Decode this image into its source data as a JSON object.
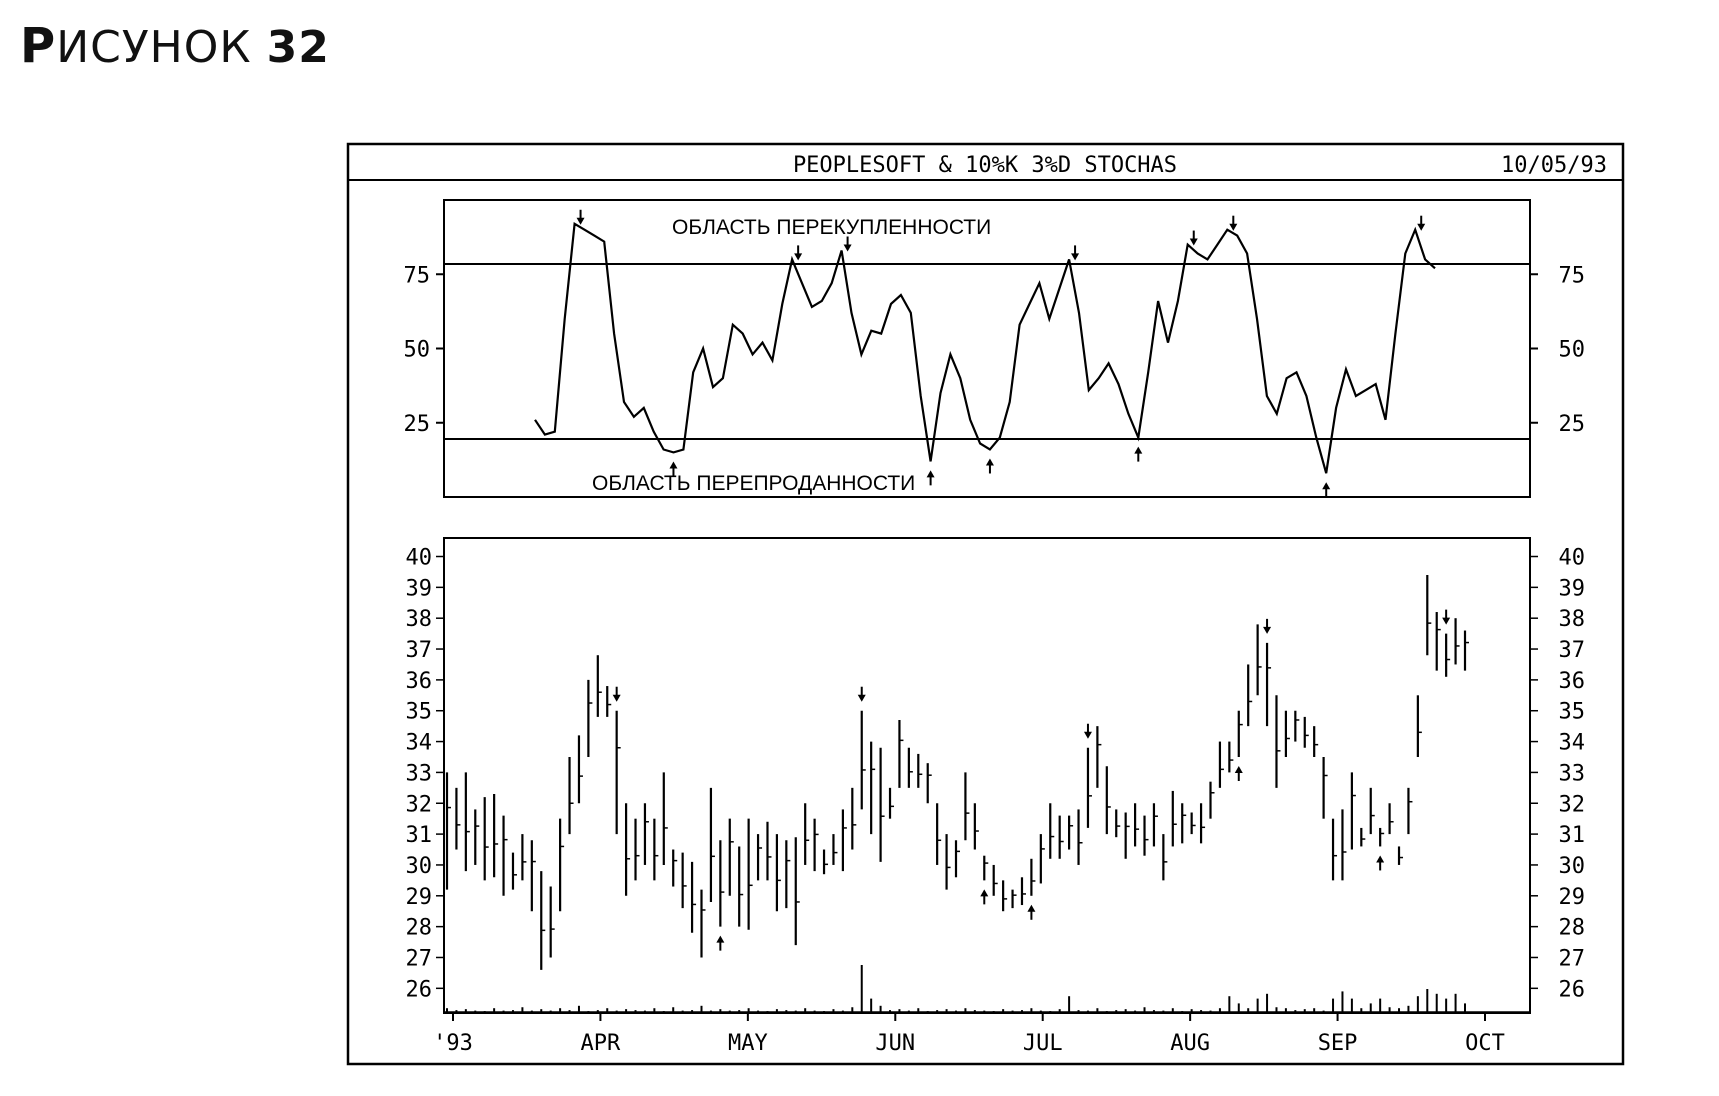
{
  "figure": {
    "title_first": "Р",
    "title_rest": "ИСУНОК",
    "title_number": "32"
  },
  "chart_data": [
    {
      "type": "line",
      "header_title": "PEOPLESOFT & 10%K 3%D STOCHAS",
      "header_date": "10/05/93",
      "overbought_label": "ОБЛАСТЬ ПЕРЕКУПЛЕННОСТИ",
      "oversold_label": "ОБЛАСТЬ ПЕРЕПРОДАННОСТИ",
      "y_ticks": [
        25,
        50,
        75
      ],
      "ylim": [
        0,
        100
      ],
      "overbought_level": 80,
      "oversold_level": 20,
      "grid": false,
      "values": [
        26,
        21,
        22,
        60,
        92,
        90,
        88,
        86,
        55,
        32,
        27,
        30,
        22,
        16,
        15,
        16,
        42,
        50,
        37,
        40,
        58,
        55,
        48,
        52,
        46,
        65,
        80,
        72,
        64,
        66,
        72,
        83,
        62,
        48,
        56,
        55,
        65,
        68,
        62,
        34,
        12,
        35,
        48,
        40,
        26,
        18,
        16,
        20,
        32,
        58,
        65,
        72,
        60,
        70,
        80,
        62,
        36,
        40,
        45,
        38,
        28,
        20,
        42,
        66,
        52,
        66,
        85,
        82,
        80,
        85,
        90,
        88,
        82,
        60,
        34,
        28,
        40,
        42,
        34,
        20,
        8,
        30,
        43,
        34,
        36,
        38,
        26,
        55,
        82,
        90,
        80,
        77
      ]
    },
    {
      "type": "bar",
      "subtype": "ohlc",
      "y_ticks": [
        26,
        27,
        28,
        29,
        30,
        31,
        32,
        33,
        34,
        35,
        36,
        37,
        38,
        39,
        40
      ],
      "ylim": [
        25.2,
        40.6
      ],
      "x_labels": [
        "'93",
        "APR",
        "MAY",
        "JUN",
        "JUL",
        "AUG",
        "SEP",
        "OCT"
      ],
      "grid": false,
      "ranges": [
        [
          29.2,
          33
        ],
        [
          30.5,
          32.5
        ],
        [
          29.8,
          33
        ],
        [
          30,
          31.8
        ],
        [
          29.5,
          32.2
        ],
        [
          29.6,
          32.3
        ],
        [
          29,
          31.6
        ],
        [
          29.2,
          30.4
        ],
        [
          29.5,
          31
        ],
        [
          28.5,
          30.8
        ],
        [
          26.6,
          29.8
        ],
        [
          27,
          29.3
        ],
        [
          28.5,
          31.5
        ],
        [
          31,
          33.5
        ],
        [
          32,
          34.2
        ],
        [
          33.5,
          36
        ],
        [
          34.8,
          36.8
        ],
        [
          34.8,
          35.8
        ],
        [
          31,
          35
        ],
        [
          29,
          32
        ],
        [
          29.5,
          31.5
        ],
        [
          30,
          32
        ],
        [
          29.5,
          31.5
        ],
        [
          30,
          33
        ],
        [
          29.3,
          30.5
        ],
        [
          28.6,
          30.4
        ],
        [
          27.8,
          30.1
        ],
        [
          27,
          29.2
        ],
        [
          28.8,
          32.5
        ],
        [
          28,
          30.8
        ],
        [
          29,
          31.5
        ],
        [
          28,
          30.6
        ],
        [
          27.9,
          31.5
        ],
        [
          29.5,
          31
        ],
        [
          29.5,
          31.4
        ],
        [
          28.5,
          31
        ],
        [
          28.6,
          30.8
        ],
        [
          27.4,
          30.9
        ],
        [
          30,
          32
        ],
        [
          29.8,
          31.5
        ],
        [
          29.7,
          30.5
        ],
        [
          30,
          31
        ],
        [
          29.8,
          31.8
        ],
        [
          30.5,
          32.5
        ],
        [
          31.8,
          35
        ],
        [
          31,
          34
        ],
        [
          30.1,
          33.8
        ],
        [
          31.5,
          32.5
        ],
        [
          32.5,
          34.7
        ],
        [
          32.5,
          33.8
        ],
        [
          32.5,
          33.6
        ],
        [
          32,
          33.3
        ],
        [
          30,
          32
        ],
        [
          29.2,
          31
        ],
        [
          29.6,
          30.8
        ],
        [
          30.8,
          33
        ],
        [
          30.5,
          32
        ],
        [
          29.5,
          30.3
        ],
        [
          29,
          30
        ],
        [
          28.5,
          29.5
        ],
        [
          28.6,
          29.2
        ],
        [
          28.7,
          29.6
        ],
        [
          29,
          30.2
        ],
        [
          29.4,
          31
        ],
        [
          30.2,
          32
        ],
        [
          30.2,
          31.6
        ],
        [
          30.5,
          31.6
        ],
        [
          30,
          31.8
        ],
        [
          31.2,
          33.8
        ],
        [
          32.5,
          34.5
        ],
        [
          31,
          33.2
        ],
        [
          30.9,
          31.8
        ],
        [
          30.2,
          31.7
        ],
        [
          30.6,
          32
        ],
        [
          30.3,
          31.6
        ],
        [
          30.6,
          32
        ],
        [
          29.5,
          31
        ],
        [
          30.6,
          32.4
        ],
        [
          30.7,
          32
        ],
        [
          31,
          31.7
        ],
        [
          30.7,
          32
        ],
        [
          31.5,
          32.7
        ],
        [
          32.5,
          34
        ],
        [
          33,
          34
        ],
        [
          33.5,
          35
        ],
        [
          34.5,
          36.5
        ],
        [
          35.5,
          37.8
        ],
        [
          34.5,
          37.2
        ],
        [
          32.5,
          35.5
        ],
        [
          33.5,
          35
        ],
        [
          34,
          35
        ],
        [
          33.8,
          34.8
        ],
        [
          33.5,
          34.5
        ],
        [
          31.5,
          33.5
        ],
        [
          29.5,
          31.5
        ],
        [
          29.5,
          31.8
        ],
        [
          30.5,
          33
        ],
        [
          30.6,
          31.2
        ],
        [
          31,
          32.5
        ],
        [
          30.6,
          31.2
        ],
        [
          31,
          32
        ],
        [
          30,
          30.6
        ],
        [
          31,
          32.5
        ],
        [
          33.5,
          35.5
        ],
        [
          36.8,
          39.4
        ],
        [
          36.3,
          38.2
        ],
        [
          36.1,
          37.5
        ],
        [
          36.5,
          38
        ],
        [
          36.3,
          37.6
        ]
      ],
      "volume": [
        0.1,
        0.06,
        0.08,
        0.05,
        0.04,
        0.1,
        0.05,
        0.06,
        0.12,
        0.05,
        0.08,
        0.05,
        0.1,
        0.06,
        0.15,
        0.04,
        0.06,
        0.1,
        0.05,
        0.08,
        0.06,
        0.05,
        0.1,
        0.04,
        0.12,
        0.05,
        0.06,
        0.15,
        0.05,
        0.08,
        0.05,
        0.06,
        0.1,
        0.05,
        0.04,
        0.08,
        0.06,
        0.05,
        0.1,
        0.05,
        0.04,
        0.08,
        0.05,
        0.12,
        1.0,
        0.3,
        0.15,
        0.06,
        0.08,
        0.05,
        0.1,
        0.04,
        0.06,
        0.08,
        0.05,
        0.1,
        0.06,
        0.05,
        0.04,
        0.08,
        0.05,
        0.06,
        0.1,
        0.05,
        0.04,
        0.08,
        0.35,
        0.06,
        0.05,
        0.1,
        0.04,
        0.06,
        0.08,
        0.05,
        0.12,
        0.06,
        0.05,
        0.1,
        0.04,
        0.08,
        0.06,
        0.05,
        0.1,
        0.35,
        0.2,
        0.1,
        0.3,
        0.4,
        0.12,
        0.1,
        0.06,
        0.08,
        0.1,
        0.05,
        0.3,
        0.45,
        0.3,
        0.1,
        0.2,
        0.3,
        0.12,
        0.1,
        0.15,
        0.35,
        0.5,
        0.4,
        0.3,
        0.4,
        0.2
      ],
      "overbought_peak_indices": [
        18,
        44,
        68,
        87,
        106
      ],
      "oversold_trough_indices": [
        29,
        57,
        62,
        84,
        99
      ]
    }
  ]
}
